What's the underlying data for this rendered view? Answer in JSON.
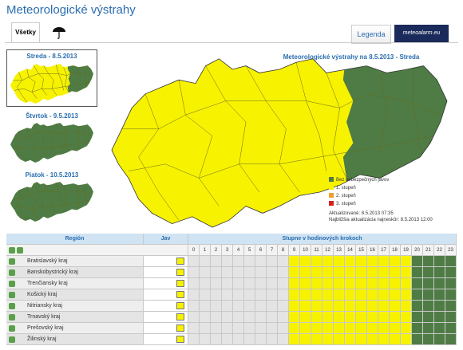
{
  "header": {
    "title": "Meteorologické výstrahy",
    "tabs": [
      "Všetky"
    ],
    "buttons": [
      "Legenda",
      "meteoalarm.eu"
    ]
  },
  "side_maps": [
    {
      "label": "Streda - 8.5.2013"
    },
    {
      "label": "Štvrtok - 9.5.2013"
    },
    {
      "label": "Piatok - 10.5.2013"
    }
  ],
  "map": {
    "title": "Meteorologické výstrahy na 8.5.2013 - Streda",
    "legend": [
      {
        "label": "Bez nebezpečných javov",
        "color": "#4e7c44"
      },
      {
        "label": "1. stupeň",
        "color": "#f7f200"
      },
      {
        "label": "2. stupeň",
        "color": "#f0a030"
      },
      {
        "label": "3. stupeň",
        "color": "#d52020"
      }
    ],
    "updated": "Aktualizované: 8.5.2013 07:35",
    "next_update": "Najbližšia aktualizácia najneskôr: 8.5.2013 12:00"
  },
  "table": {
    "headers": [
      "Región",
      "Jav",
      "Stupne v hodinových krokoch"
    ],
    "hours": [
      0,
      1,
      2,
      3,
      4,
      5,
      6,
      7,
      8,
      9,
      10,
      11,
      12,
      13,
      14,
      15,
      16,
      17,
      18,
      19,
      20,
      21,
      22,
      23
    ],
    "hour_colors": [
      "#e4e4e4",
      "#e4e4e4",
      "#e4e4e4",
      "#e4e4e4",
      "#e4e4e4",
      "#e4e4e4",
      "#e4e4e4",
      "#e4e4e4",
      "#e4e4e4",
      "#f7f200",
      "#f7f200",
      "#f7f200",
      "#f7f200",
      "#f7f200",
      "#f7f200",
      "#f7f200",
      "#f7f200",
      "#f7f200",
      "#f7f200",
      "#f7f200",
      "#4e7c44",
      "#4e7c44",
      "#4e7c44",
      "#4e7c44"
    ],
    "rows": [
      "Bratislavský kraj",
      "Banskobystrický kraj",
      "Trenčiansky kraj",
      "Košický kraj",
      "Nitriansky kraj",
      "Trnavský kraj",
      "Prešovský kraj",
      "Žilinský kraj"
    ]
  }
}
